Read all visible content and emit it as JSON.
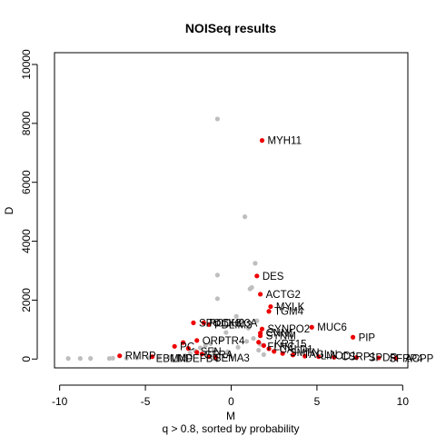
{
  "chart_data": {
    "type": "scatter",
    "title": "NOISeq results",
    "xlabel": "M",
    "ylabel": "D",
    "subtitle": "q > 0.8, sorted by probability",
    "xlim": [
      -10,
      10
    ],
    "ylim": [
      0,
      10000
    ],
    "xticks": [
      -10,
      -5,
      0,
      5,
      10
    ],
    "yticks": [
      0,
      2000,
      4000,
      6000,
      8000,
      10000
    ],
    "grid": false,
    "legend": "none",
    "colors": {
      "background_points": "#bebebe",
      "significant_points": "#ee0000"
    },
    "background_points": [
      {
        "x": -9.5,
        "y": 20
      },
      {
        "x": -8.8,
        "y": 20
      },
      {
        "x": -8.2,
        "y": 20
      },
      {
        "x": -7.1,
        "y": 20
      },
      {
        "x": -6.9,
        "y": 30
      },
      {
        "x": -6.1,
        "y": 30
      },
      {
        "x": -5.5,
        "y": 40
      },
      {
        "x": -4.8,
        "y": 40
      },
      {
        "x": -4.2,
        "y": 50
      },
      {
        "x": -3.6,
        "y": 60
      },
      {
        "x": -3.1,
        "y": 90
      },
      {
        "x": -2.7,
        "y": 120
      },
      {
        "x": -2.4,
        "y": 200
      },
      {
        "x": -2.1,
        "y": 280
      },
      {
        "x": -1.8,
        "y": 380
      },
      {
        "x": -1.5,
        "y": 460
      },
      {
        "x": -1.2,
        "y": 520
      },
      {
        "x": -1.0,
        "y": 300
      },
      {
        "x": -0.8,
        "y": 8150
      },
      {
        "x": -0.8,
        "y": 2850
      },
      {
        "x": -0.8,
        "y": 2050
      },
      {
        "x": -0.6,
        "y": 650
      },
      {
        "x": -0.3,
        "y": 900
      },
      {
        "x": 0.0,
        "y": 1200
      },
      {
        "x": 0.3,
        "y": 1450
      },
      {
        "x": 0.6,
        "y": 1300
      },
      {
        "x": 0.8,
        "y": 4830
      },
      {
        "x": 1.0,
        "y": 1050
      },
      {
        "x": 1.1,
        "y": 2380
      },
      {
        "x": 1.2,
        "y": 2430
      },
      {
        "x": 1.3,
        "y": 700
      },
      {
        "x": 1.4,
        "y": 3250
      },
      {
        "x": 1.5,
        "y": 1300
      },
      {
        "x": 1.6,
        "y": 300
      },
      {
        "x": 1.9,
        "y": 150
      },
      {
        "x": 0.4,
        "y": 400
      },
      {
        "x": -0.2,
        "y": 250
      },
      {
        "x": 0.9,
        "y": 600
      },
      {
        "x": 1.7,
        "y": 500
      }
    ],
    "labeled_points": [
      {
        "label": "MYH11",
        "x": 1.8,
        "y": 7420
      },
      {
        "label": "DES",
        "x": 1.5,
        "y": 2820
      },
      {
        "label": "ACTG2",
        "x": 1.7,
        "y": 2200
      },
      {
        "label": "MYLK",
        "x": 2.3,
        "y": 1780
      },
      {
        "label": "TGM4",
        "x": 2.2,
        "y": 1620
      },
      {
        "label": "MUC6",
        "x": 4.7,
        "y": 1080
      },
      {
        "label": "SYNPO2",
        "x": 1.8,
        "y": 1020
      },
      {
        "label": "CNN1",
        "x": 1.7,
        "y": 880
      },
      {
        "label": "SYNM",
        "x": 1.7,
        "y": 790
      },
      {
        "label": "PIP",
        "x": 7.1,
        "y": 740
      },
      {
        "label": "SPOCK3",
        "x": -2.2,
        "y": 1230
      },
      {
        "label": "PCDH23A",
        "x": -1.6,
        "y": 1230
      },
      {
        "label": "PDLIM3",
        "x": -1.3,
        "y": 1170
      },
      {
        "label": "ORPTR4",
        "x": -2.0,
        "y": 630
      },
      {
        "label": "PC",
        "x": -3.3,
        "y": 430
      },
      {
        "label": "RMRP",
        "x": -6.5,
        "y": 110
      }
    ],
    "unlabeled_sig_points": [
      {
        "x": -2.8,
        "y": 560
      },
      {
        "x": -2.5,
        "y": 360
      },
      {
        "x": -2.0,
        "y": 230
      },
      {
        "x": -1.7,
        "y": 170
      },
      {
        "x": -1.3,
        "y": 90
      },
      {
        "x": -0.9,
        "y": 60
      },
      {
        "x": -4.6,
        "y": 80
      },
      {
        "x": 1.6,
        "y": 570
      },
      {
        "x": 1.9,
        "y": 460
      },
      {
        "x": 2.2,
        "y": 350
      },
      {
        "x": 2.5,
        "y": 260
      },
      {
        "x": 3.0,
        "y": 190
      },
      {
        "x": 3.6,
        "y": 140
      },
      {
        "x": 4.3,
        "y": 100
      },
      {
        "x": 5.1,
        "y": 80
      },
      {
        "x": 6.0,
        "y": 60
      },
      {
        "x": 7.3,
        "y": 50
      },
      {
        "x": 8.6,
        "y": 40
      },
      {
        "x": 9.6,
        "y": 30
      }
    ],
    "cluster_labels": [
      {
        "label": "EBMN",
        "x": -4.6,
        "y": 20
      },
      {
        "label": "LMP",
        "x": -3.7,
        "y": 20
      },
      {
        "label": "DEFB4",
        "x": -2.9,
        "y": 20
      },
      {
        "label": "SFN",
        "x": -2.0,
        "y": 260
      },
      {
        "label": "GFRA",
        "x": -1.8,
        "y": 140
      },
      {
        "label": "SEMA3",
        "x": -1.2,
        "y": 40
      },
      {
        "label": "KRT15",
        "x": 2.3,
        "y": 520
      },
      {
        "label": "FLNC",
        "x": 1.9,
        "y": 420
      },
      {
        "label": "CALD1",
        "x": 2.6,
        "y": 330
      },
      {
        "label": "SMTN",
        "x": 3.2,
        "y": 230
      },
      {
        "label": "TAGLN",
        "x": 4.0,
        "y": 160
      },
      {
        "label": "LMOD1",
        "x": 5.0,
        "y": 110
      },
      {
        "label": "CSRP1",
        "x": 6.2,
        "y": 80
      },
      {
        "label": "SPDR",
        "x": 7.8,
        "y": 60
      },
      {
        "label": "SFRP4",
        "x": 9.0,
        "y": 30
      },
      {
        "label": "ACPP",
        "x": 10.0,
        "y": 20
      }
    ]
  }
}
